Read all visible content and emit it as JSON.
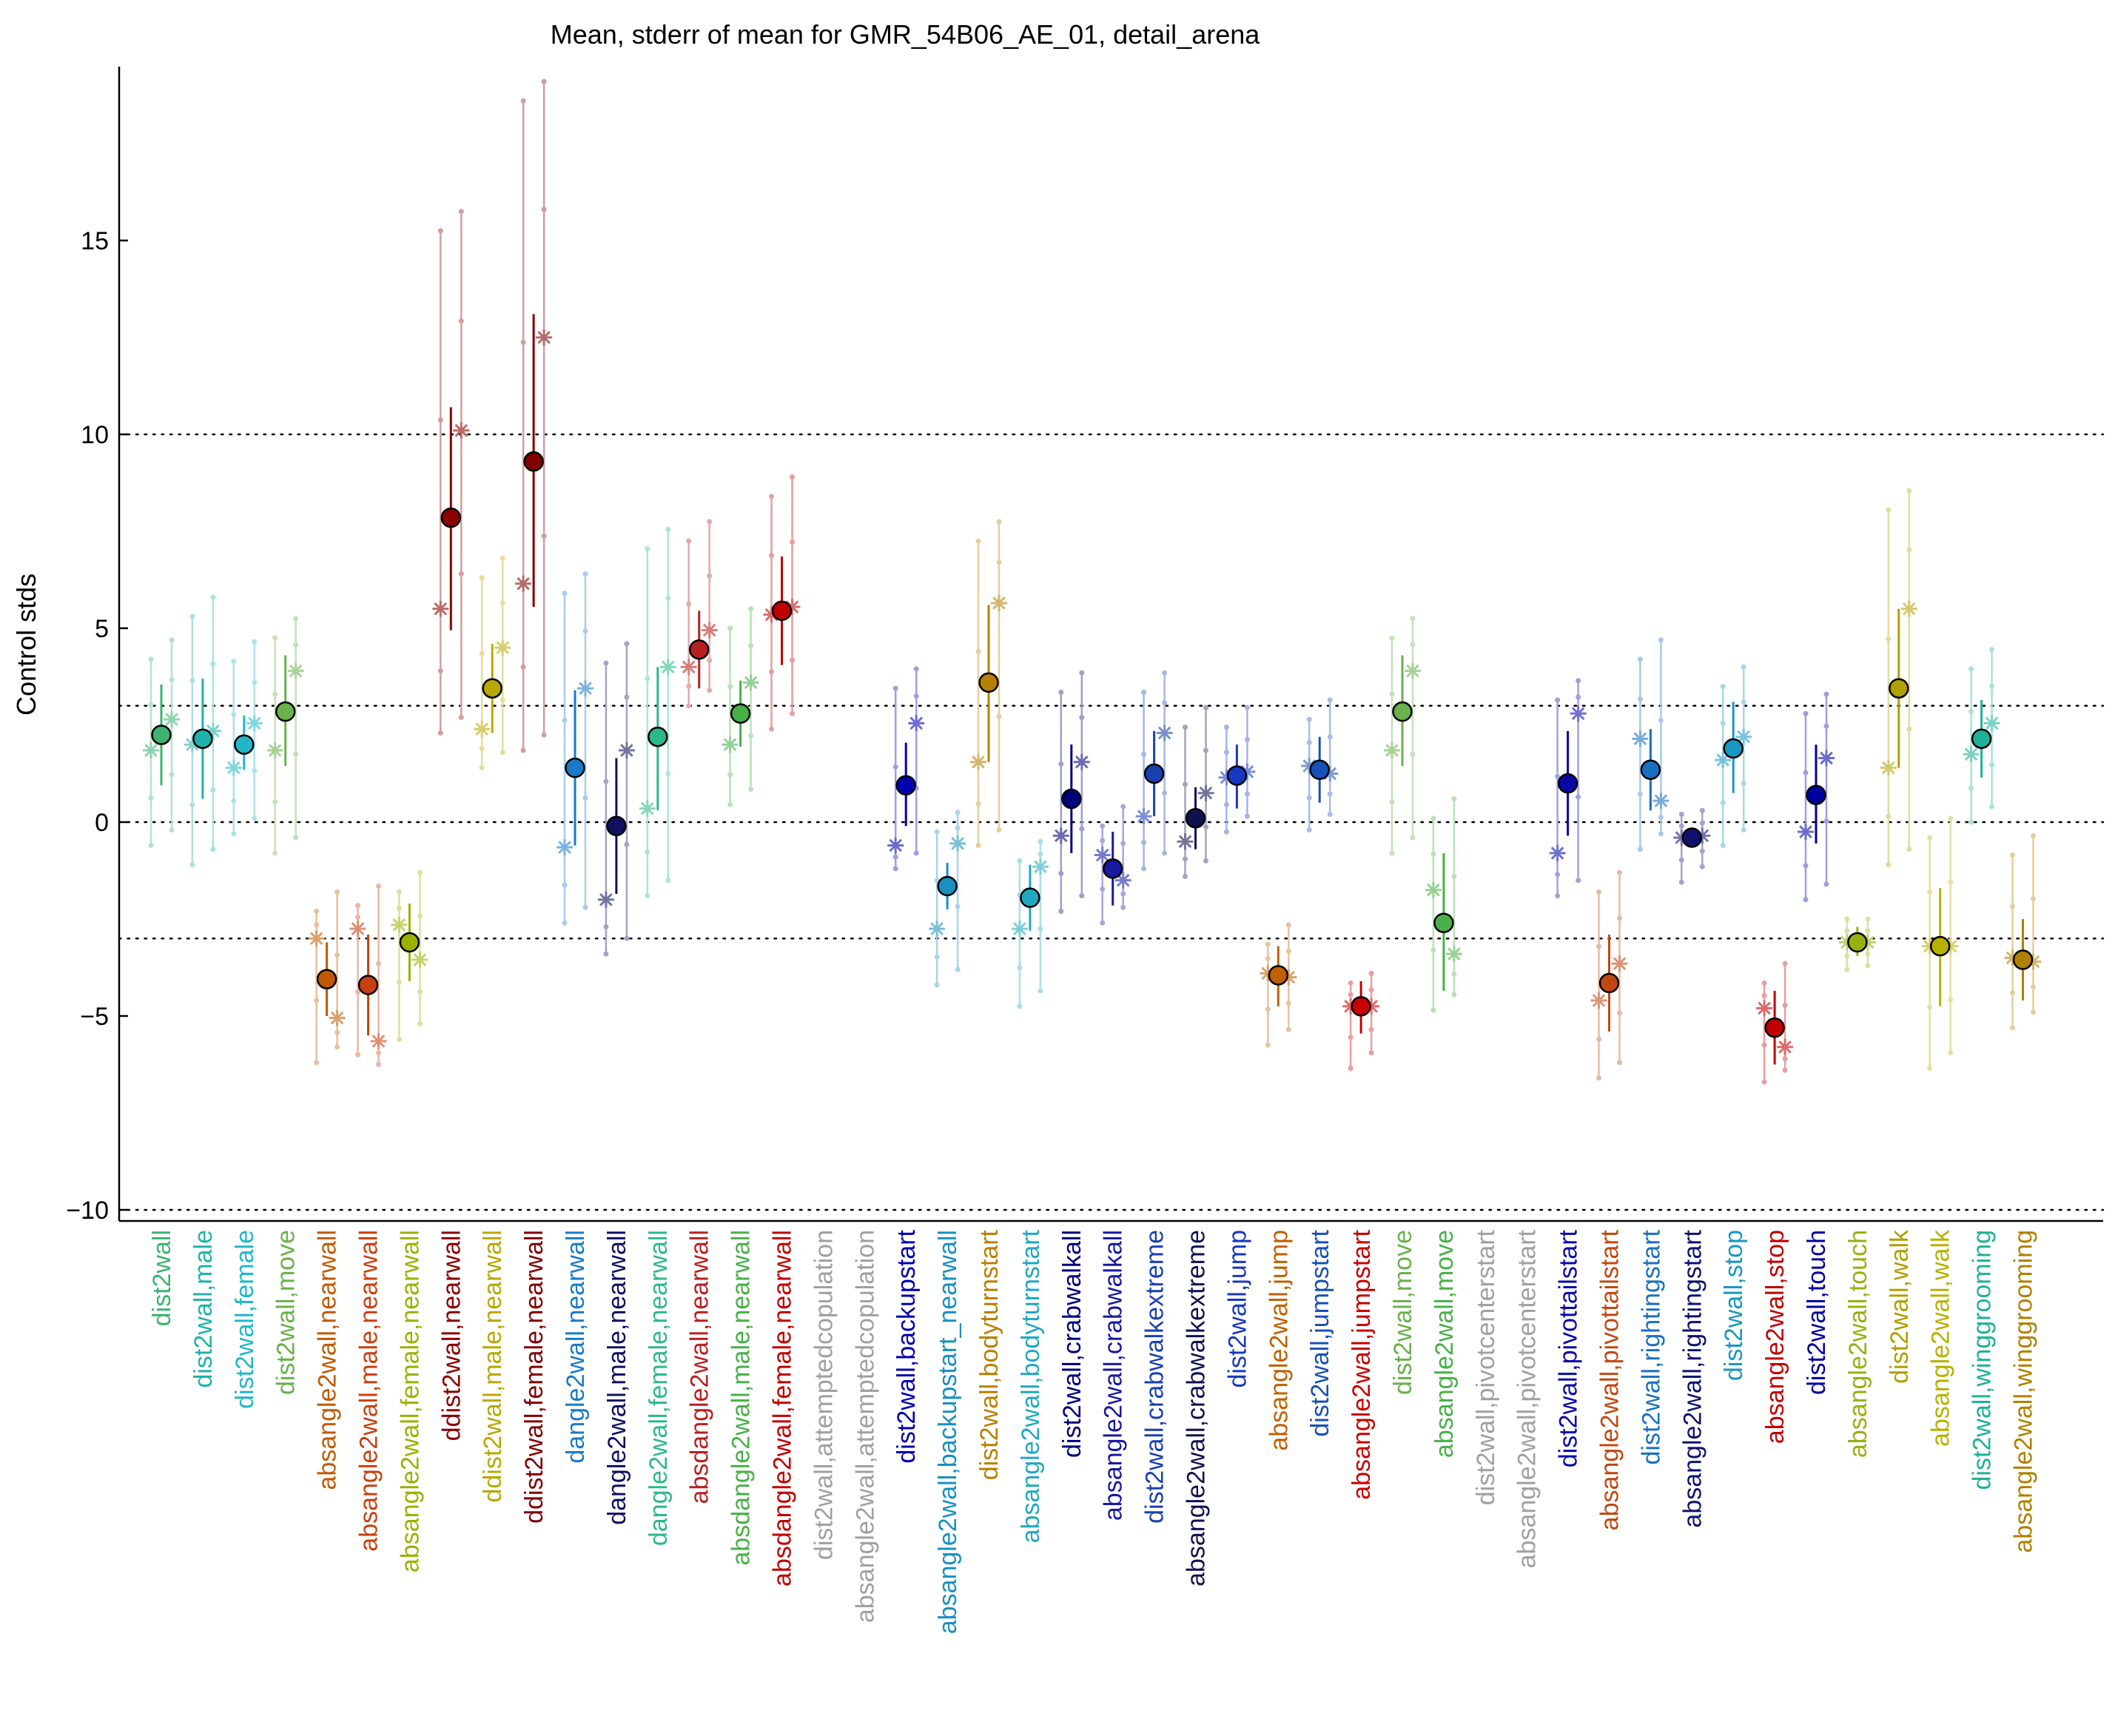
{
  "chart_data": {
    "type": "scatter",
    "title": "Mean, stderr of mean for GMR_54B06_AE_01, detail_arena",
    "xlabel": "",
    "ylabel": "Control stds",
    "ylim": [
      -10.4,
      19.4
    ],
    "yticks": [
      -10,
      -5,
      0,
      5,
      10,
      15
    ],
    "reference_lines": [
      -10,
      -3,
      0,
      3,
      10
    ],
    "grid": false,
    "legend": "none",
    "categories": [
      {
        "label": "dist2wall",
        "color": "#3cb371",
        "mean": 2.25,
        "err_lo": 0.95,
        "err_hi": 3.55,
        "stars": [
          1.85,
          2.65
        ],
        "range_lo": -0.6,
        "range_hi": 4.7
      },
      {
        "label": "dist2wall,male",
        "color": "#20b2aa",
        "mean": 2.15,
        "err_lo": 0.6,
        "err_hi": 3.7,
        "stars": [
          2.0,
          2.35
        ],
        "range_lo": -1.1,
        "range_hi": 5.8
      },
      {
        "label": "dist2wall,female",
        "color": "#20b8c8",
        "mean": 2.0,
        "err_lo": 1.35,
        "err_hi": 2.75,
        "stars": [
          1.4,
          2.55
        ],
        "range_lo": -0.3,
        "range_hi": 4.65
      },
      {
        "label": "dist2wall,move",
        "color": "#6ab04c",
        "mean": 2.85,
        "err_lo": 1.45,
        "err_hi": 4.3,
        "stars": [
          1.85,
          3.9
        ],
        "range_lo": -0.8,
        "range_hi": 5.25
      },
      {
        "label": "absangle2wall,nearwall",
        "color": "#c05a00",
        "mean": -4.05,
        "err_lo": -5.0,
        "err_hi": -3.1,
        "stars": [
          -3.0,
          -5.05
        ],
        "range_lo": -6.2,
        "range_hi": -1.8
      },
      {
        "label": "absangle2wall,male,nearwall",
        "color": "#c84010",
        "mean": -4.2,
        "err_lo": -5.5,
        "err_hi": -2.9,
        "stars": [
          -2.75,
          -5.65
        ],
        "range_lo": -6.0,
        "range_hi": -1.65
      },
      {
        "label": "absangle2wall,female,nearwall",
        "color": "#9cb000",
        "mean": -3.1,
        "err_lo": -4.1,
        "err_hi": -2.1,
        "stars": [
          -2.65,
          -3.55
        ],
        "range_lo": -5.6,
        "range_hi": -1.3
      },
      {
        "label": "ddist2wall,nearwall",
        "color": "#8b0000",
        "mean": 7.85,
        "err_lo": 4.95,
        "err_hi": 10.7,
        "stars": [
          5.5,
          10.1
        ],
        "range_lo": 2.3,
        "range_hi": 15.75
      },
      {
        "label": "ddist2wall,male,nearwall",
        "color": "#b8a800",
        "mean": 3.45,
        "err_lo": 2.3,
        "err_hi": 4.6,
        "stars": [
          2.4,
          4.5
        ],
        "range_lo": 1.4,
        "range_hi": 6.8
      },
      {
        "label": "ddist2wall,female,nearwall",
        "color": "#800000",
        "mean": 9.3,
        "err_lo": 5.55,
        "err_hi": 13.1,
        "stars": [
          6.15,
          12.5
        ],
        "range_lo": 1.85,
        "range_hi": 19.1
      },
      {
        "label": "dangle2wall,nearwall",
        "color": "#1a7ac8",
        "mean": 1.4,
        "err_lo": -0.6,
        "err_hi": 3.4,
        "stars": [
          -0.65,
          3.45
        ],
        "range_lo": -2.6,
        "range_hi": 6.4
      },
      {
        "label": "dangle2wall,male,nearwall",
        "color": "#101060",
        "mean": -0.1,
        "err_lo": -1.85,
        "err_hi": 1.65,
        "stars": [
          -2.0,
          1.85
        ],
        "range_lo": -3.4,
        "range_hi": 4.6
      },
      {
        "label": "dangle2wall,female,nearwall",
        "color": "#2eb88a",
        "mean": 2.2,
        "err_lo": 0.3,
        "err_hi": 4.0,
        "stars": [
          0.35,
          4.0
        ],
        "range_lo": -1.9,
        "range_hi": 7.55
      },
      {
        "label": "absdangle2wall,nearwall",
        "color": "#b82020",
        "mean": 4.45,
        "err_lo": 3.45,
        "err_hi": 5.45,
        "stars": [
          4.0,
          4.95
        ],
        "range_lo": 3.0,
        "range_hi": 7.75
      },
      {
        "label": "absdangle2wall,male,nearwall",
        "color": "#48b048",
        "mean": 2.8,
        "err_lo": 1.95,
        "err_hi": 3.65,
        "stars": [
          2.0,
          3.6
        ],
        "range_lo": 0.45,
        "range_hi": 5.5
      },
      {
        "label": "absdangle2wall,female,nearwall",
        "color": "#c00000",
        "mean": 5.45,
        "err_lo": 4.05,
        "err_hi": 6.85,
        "stars": [
          5.35,
          5.55
        ],
        "range_lo": 2.4,
        "range_hi": 8.9
      },
      {
        "label": "dist2wall,attemptedcopulation",
        "color": "#a0a0a0",
        "mean": null,
        "err_lo": null,
        "err_hi": null,
        "stars": [],
        "range_lo": null,
        "range_hi": null
      },
      {
        "label": "absangle2wall,attemptedcopulation",
        "color": "#a0a0a0",
        "mean": null,
        "err_lo": null,
        "err_hi": null,
        "stars": [],
        "range_lo": null,
        "range_hi": null
      },
      {
        "label": "dist2wall,backupstart",
        "color": "#0000b0",
        "mean": 0.95,
        "err_lo": -0.1,
        "err_hi": 2.05,
        "stars": [
          -0.6,
          2.55
        ],
        "range_lo": -1.2,
        "range_hi": 3.95
      },
      {
        "label": "absangle2wall,backupstart_nearwall",
        "color": "#1890c0",
        "mean": -1.65,
        "err_lo": -2.25,
        "err_hi": -1.05,
        "stars": [
          -2.75,
          -0.55
        ],
        "range_lo": -4.2,
        "range_hi": 0.25
      },
      {
        "label": "dist2wall,bodyturnstart",
        "color": "#b88000",
        "mean": 3.6,
        "err_lo": 1.55,
        "err_hi": 5.6,
        "stars": [
          1.55,
          5.65
        ],
        "range_lo": -0.6,
        "range_hi": 7.75
      },
      {
        "label": "absangle2wall,bodyturnstart",
        "color": "#20a8c0",
        "mean": -1.95,
        "err_lo": -2.8,
        "err_hi": -1.1,
        "stars": [
          -2.75,
          -1.15
        ],
        "range_lo": -4.75,
        "range_hi": -0.5
      },
      {
        "label": "dist2wall,crabwalkall",
        "color": "#00007a",
        "mean": 0.6,
        "err_lo": -0.8,
        "err_hi": 2.0,
        "stars": [
          -0.35,
          1.55
        ],
        "range_lo": -2.3,
        "range_hi": 3.85
      },
      {
        "label": "absangle2wall,crabwalkall",
        "color": "#1818a0",
        "mean": -1.2,
        "err_lo": -2.15,
        "err_hi": -0.25,
        "stars": [
          -0.85,
          -1.5
        ],
        "range_lo": -2.6,
        "range_hi": 0.4
      },
      {
        "label": "dist2wall,crabwalkextreme",
        "color": "#1a40b0",
        "mean": 1.25,
        "err_lo": 0.15,
        "err_hi": 2.35,
        "stars": [
          0.15,
          2.3
        ],
        "range_lo": -1.2,
        "range_hi": 3.85
      },
      {
        "label": "absangle2wall,crabwalkextreme",
        "color": "#101050",
        "mean": 0.1,
        "err_lo": -0.7,
        "err_hi": 0.9,
        "stars": [
          -0.5,
          0.75
        ],
        "range_lo": -1.4,
        "range_hi": 2.95
      },
      {
        "label": "dist2wall,jump",
        "color": "#1838c0",
        "mean": 1.2,
        "err_lo": 0.35,
        "err_hi": 2.0,
        "stars": [
          1.15,
          1.3
        ],
        "range_lo": -0.25,
        "range_hi": 2.95
      },
      {
        "label": "absangle2wall,jump",
        "color": "#c06000",
        "mean": -3.95,
        "err_lo": -4.75,
        "err_hi": -3.2,
        "stars": [
          -3.9,
          -4.0
        ],
        "range_lo": -5.75,
        "range_hi": -2.65
      },
      {
        "label": "dist2wall,jumpstart",
        "color": "#1850b8",
        "mean": 1.35,
        "err_lo": 0.5,
        "err_hi": 2.2,
        "stars": [
          1.45,
          1.25
        ],
        "range_lo": -0.2,
        "range_hi": 3.15
      },
      {
        "label": "absangle2wall,jumpstart",
        "color": "#c80000",
        "mean": -4.75,
        "err_lo": -5.45,
        "err_hi": -4.1,
        "stars": [
          -4.75,
          -4.75
        ],
        "range_lo": -6.35,
        "range_hi": -3.9
      },
      {
        "label": "dist2wall,move",
        "color": "#6ab04c",
        "mean": 2.85,
        "err_lo": 1.45,
        "err_hi": 4.3,
        "stars": [
          1.85,
          3.9
        ],
        "range_lo": -0.8,
        "range_hi": 5.25
      },
      {
        "label": "absangle2wall,move",
        "color": "#48b048",
        "mean": -2.6,
        "err_lo": -4.35,
        "err_hi": -0.8,
        "stars": [
          -1.75,
          -3.4
        ],
        "range_lo": -4.85,
        "range_hi": 0.6
      },
      {
        "label": "dist2wall,pivotcenterstart",
        "color": "#a0a0a0",
        "mean": null,
        "err_lo": null,
        "err_hi": null,
        "stars": [],
        "range_lo": null,
        "range_hi": null
      },
      {
        "label": "absangle2wall,pivotcenterstart",
        "color": "#a0a0a0",
        "mean": null,
        "err_lo": null,
        "err_hi": null,
        "stars": [],
        "range_lo": null,
        "range_hi": null
      },
      {
        "label": "dist2wall,pivottailstart",
        "color": "#0808a8",
        "mean": 1.0,
        "err_lo": -0.35,
        "err_hi": 2.35,
        "stars": [
          -0.8,
          2.8
        ],
        "range_lo": -1.9,
        "range_hi": 3.65
      },
      {
        "label": "absangle2wall,pivottailstart",
        "color": "#c04810",
        "mean": -4.15,
        "err_lo": -5.4,
        "err_hi": -2.9,
        "stars": [
          -4.6,
          -3.65
        ],
        "range_lo": -6.6,
        "range_hi": -1.3
      },
      {
        "label": "dist2wall,rightingstart",
        "color": "#1a70c0",
        "mean": 1.35,
        "err_lo": 0.3,
        "err_hi": 2.4,
        "stars": [
          2.15,
          0.55
        ],
        "range_lo": -0.7,
        "range_hi": 4.7
      },
      {
        "label": "absangle2wall,rightingstart",
        "color": "#101070",
        "mean": -0.4,
        "err_lo": -0.55,
        "err_hi": -0.2,
        "stars": [
          -0.4,
          -0.35
        ],
        "range_lo": -1.55,
        "range_hi": 0.3
      },
      {
        "label": "dist2wall,stop",
        "color": "#1898c0",
        "mean": 1.9,
        "err_lo": 0.75,
        "err_hi": 3.1,
        "stars": [
          1.6,
          2.2
        ],
        "range_lo": -0.6,
        "range_hi": 4.0
      },
      {
        "label": "absangle2wall,stop",
        "color": "#c00000",
        "mean": -5.3,
        "err_lo": -6.25,
        "err_hi": -4.35,
        "stars": [
          -4.8,
          -5.8
        ],
        "range_lo": -6.7,
        "range_hi": -3.65
      },
      {
        "label": "dist2wall,touch",
        "color": "#0000a0",
        "mean": 0.7,
        "err_lo": -0.55,
        "err_hi": 2.0,
        "stars": [
          -0.25,
          1.65
        ],
        "range_lo": -2.0,
        "range_hi": 3.3
      },
      {
        "label": "absangle2wall,touch",
        "color": "#98b010",
        "mean": -3.1,
        "err_lo": -3.45,
        "err_hi": -2.7,
        "stars": [
          -3.1,
          -3.1
        ],
        "range_lo": -3.8,
        "range_hi": -2.5
      },
      {
        "label": "dist2wall,walk",
        "color": "#b0a000",
        "mean": 3.45,
        "err_lo": 1.4,
        "err_hi": 5.5,
        "stars": [
          1.4,
          5.5
        ],
        "range_lo": -1.1,
        "range_hi": 8.55
      },
      {
        "label": "absangle2wall,walk",
        "color": "#b8b000",
        "mean": -3.2,
        "err_lo": -4.75,
        "err_hi": -1.7,
        "stars": [
          -3.2,
          -3.2
        ],
        "range_lo": -6.35,
        "range_hi": 0.1
      },
      {
        "label": "dist2wall,winggrooming",
        "color": "#20b098",
        "mean": 2.15,
        "err_lo": 1.15,
        "err_hi": 3.15,
        "stars": [
          1.75,
          2.55
        ],
        "range_lo": 0.0,
        "range_hi": 4.45
      },
      {
        "label": "absangle2wall,winggrooming",
        "color": "#b08000",
        "mean": -3.55,
        "err_lo": -4.6,
        "err_hi": -2.5,
        "stars": [
          -3.5,
          -3.6
        ],
        "range_lo": -5.3,
        "range_hi": -0.35
      }
    ]
  }
}
